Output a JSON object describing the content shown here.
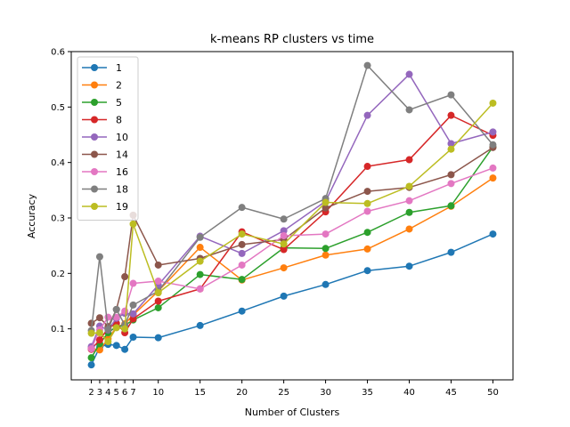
{
  "chart_data": {
    "type": "line",
    "title": "k-means RP clusters vs time",
    "xlabel": "Number of Clusters",
    "ylabel": "Accuracy",
    "xlim": [
      -0.4,
      52.4
    ],
    "ylim": [
      0.008,
      0.6
    ],
    "xticks": [
      2,
      3,
      4,
      5,
      6,
      7,
      10,
      15,
      20,
      25,
      30,
      35,
      40,
      45,
      50
    ],
    "yticks": [
      0.1,
      0.2,
      0.3,
      0.4,
      0.5,
      0.6
    ],
    "ytick_labels": [
      "0.1",
      "0.2",
      "0.3",
      "0.4",
      "0.5",
      "0.6"
    ],
    "legend_position": "upper-left",
    "grid": false,
    "x": [
      2,
      3,
      4,
      5,
      6,
      7,
      10,
      15,
      20,
      25,
      30,
      35,
      40,
      45,
      50
    ],
    "series": [
      {
        "name": "1",
        "color": "#1f77b4",
        "values": [
          0.035,
          0.067,
          0.072,
          0.07,
          0.063,
          0.085,
          0.084,
          0.106,
          0.132,
          0.159,
          0.18,
          0.205,
          0.213,
          0.238,
          0.271
        ]
      },
      {
        "name": "2",
        "color": "#ff7f0e",
        "values": [
          0.065,
          0.062,
          0.082,
          0.103,
          0.109,
          0.125,
          0.168,
          0.247,
          0.188,
          0.21,
          0.233,
          0.244,
          0.28,
          0.321,
          0.372
        ]
      },
      {
        "name": "5",
        "color": "#2ca02c",
        "values": [
          0.048,
          0.073,
          0.093,
          0.104,
          0.106,
          0.116,
          0.138,
          0.198,
          0.189,
          0.246,
          0.245,
          0.274,
          0.31,
          0.322,
          0.428
        ]
      },
      {
        "name": "8",
        "color": "#d62728",
        "values": [
          0.063,
          0.08,
          0.101,
          0.11,
          0.093,
          0.118,
          0.15,
          0.172,
          0.275,
          0.243,
          0.311,
          0.393,
          0.405,
          0.485,
          0.449
        ]
      },
      {
        "name": "10",
        "color": "#9467bd",
        "values": [
          0.068,
          0.105,
          0.098,
          0.119,
          0.128,
          0.127,
          0.179,
          0.267,
          0.236,
          0.277,
          0.33,
          0.485,
          0.559,
          0.434,
          0.455
        ]
      },
      {
        "name": "14",
        "color": "#8c564b",
        "values": [
          0.11,
          0.12,
          0.104,
          0.135,
          0.194,
          0.305,
          0.215,
          0.227,
          0.252,
          0.261,
          0.318,
          0.348,
          0.355,
          0.378,
          0.427
        ]
      },
      {
        "name": "16",
        "color": "#e377c2",
        "values": [
          0.064,
          0.098,
          0.121,
          0.121,
          0.132,
          0.182,
          0.186,
          0.172,
          0.215,
          0.268,
          0.271,
          0.312,
          0.331,
          0.362,
          0.39
        ]
      },
      {
        "name": "18",
        "color": "#7f7f7f",
        "values": [
          0.097,
          0.23,
          0.099,
          0.135,
          0.107,
          0.143,
          0.168,
          0.265,
          0.319,
          0.298,
          0.335,
          0.575,
          0.495,
          0.522,
          0.432
        ]
      },
      {
        "name": "19",
        "color": "#bcbd22",
        "values": [
          0.092,
          0.093,
          0.077,
          0.102,
          0.1,
          0.289,
          0.165,
          0.222,
          0.271,
          0.253,
          0.328,
          0.326,
          0.357,
          0.424,
          0.507
        ]
      }
    ]
  }
}
